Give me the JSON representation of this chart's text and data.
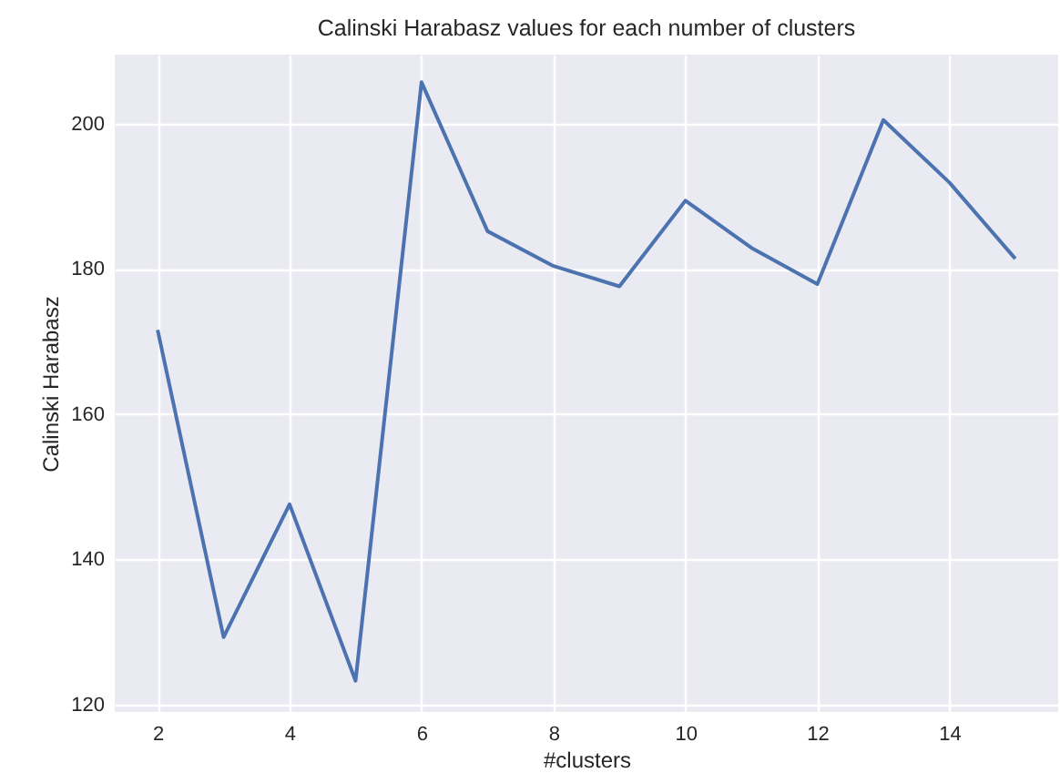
{
  "chart_data": {
    "type": "line",
    "title": "Calinski Harabasz values for each number of clusters",
    "xlabel": "#clusters",
    "ylabel": "Calinski Harabasz",
    "x": [
      2,
      3,
      4,
      5,
      6,
      7,
      8,
      9,
      10,
      11,
      12,
      13,
      14,
      15
    ],
    "series": [
      {
        "color": "#4c72b0",
        "values": [
          171.6,
          129.3,
          147.6,
          123.3,
          205.7,
          185.2,
          180.4,
          177.6,
          189.4,
          182.9,
          177.9,
          200.5,
          191.9,
          181.4
        ]
      }
    ],
    "xlim": [
      1.35,
      15.65
    ],
    "ylim": [
      119,
      209.5
    ],
    "xticks": [
      2,
      4,
      6,
      8,
      10,
      12,
      14
    ],
    "yticks": [
      120,
      140,
      160,
      180,
      200
    ],
    "grid": true
  }
}
